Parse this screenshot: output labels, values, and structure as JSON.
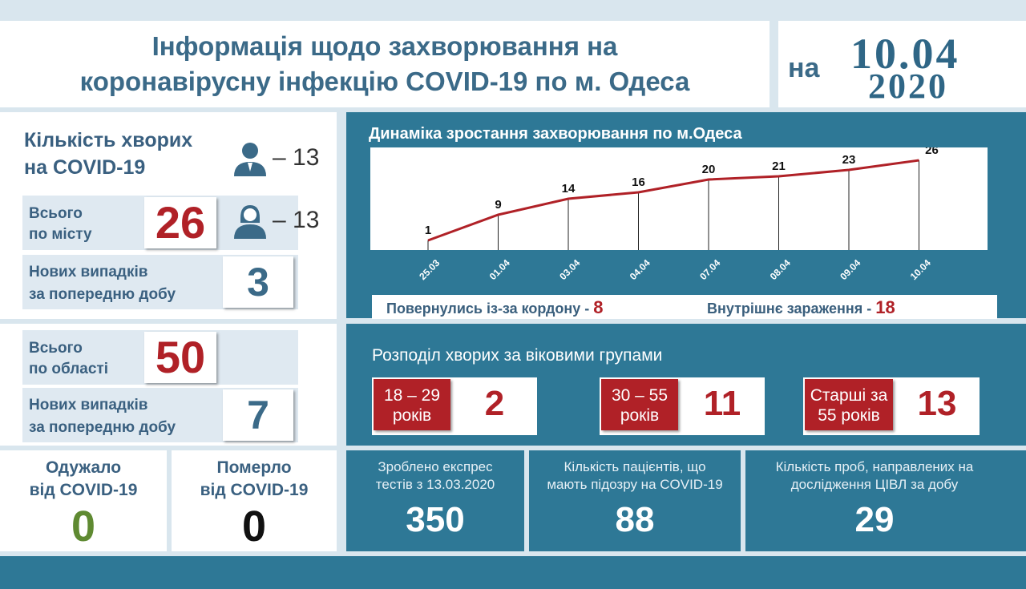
{
  "header": {
    "title_line1": "Інформація щодо захворювання на",
    "title_line2": "коронавірусну інфекцію COVID-19 по м. Одеса",
    "date_prefix": "на",
    "date_day": "10.04",
    "date_year": "2020"
  },
  "cases": {
    "heading_line1": "Кількість хворих",
    "heading_line2": "на COVID-19",
    "male_count": "– 13",
    "female_count": "– 13",
    "city_total_label_line1": "Всього",
    "city_total_label_line2": "по місту",
    "city_total": "26",
    "city_new_label_line1": "Нових випадків",
    "city_new_label_line2": "за попередню добу",
    "city_new": "3",
    "region_total_label_line1": "Всього",
    "region_total_label_line2": "по області",
    "region_total": "50",
    "region_new_label_line1": "Нових випадків",
    "region_new_label_line2": "за попередню добу",
    "region_new": "7"
  },
  "outcomes": {
    "recovered_label_line1": "Одужало",
    "recovered_label_line2": "від COVID-19",
    "recovered": "0",
    "died_label_line1": "Померло",
    "died_label_line2": "від COVID-19",
    "died": "0"
  },
  "chart_data": {
    "type": "line",
    "title": "Динаміка зростання захворювання по м.Одеса",
    "categories": [
      "25.03",
      "01.04",
      "03.04",
      "04.04",
      "07.04",
      "08.04",
      "09.04",
      "10.04"
    ],
    "values": [
      1,
      9,
      14,
      16,
      20,
      21,
      23,
      26
    ],
    "ylim": [
      0,
      28
    ],
    "line_color": "#b02127"
  },
  "sources": {
    "returned_label": "Повернулись із-за кордону -",
    "returned": "8",
    "internal_label": "Внутрішнє зараження -",
    "internal": "18"
  },
  "age": {
    "heading": "Розподіл хворих за віковими групами",
    "groups": [
      {
        "label_line1": "18 – 29",
        "label_line2": "років",
        "value": "2"
      },
      {
        "label_line1": "30 – 55",
        "label_line2": "років",
        "value": "11"
      },
      {
        "label_line1": "Старші за",
        "label_line2": "55 років",
        "value": "13"
      }
    ]
  },
  "stats": [
    {
      "label_line1": "Зроблено експрес",
      "label_line2": "тестів з 13.03.2020",
      "value": "350"
    },
    {
      "label_line1": "Кількість пацієнтів, що",
      "label_line2": "мають підозру на COVID-19",
      "value": "88"
    },
    {
      "label_line1": "Кількість проб, направлених на",
      "label_line2": "дослідження ЦІВЛ за добу",
      "value": "29"
    }
  ],
  "colors": {
    "accent_red": "#b02127",
    "teal": "#2e7896",
    "green": "#5f8a32",
    "title_blue": "#3b6a88"
  }
}
